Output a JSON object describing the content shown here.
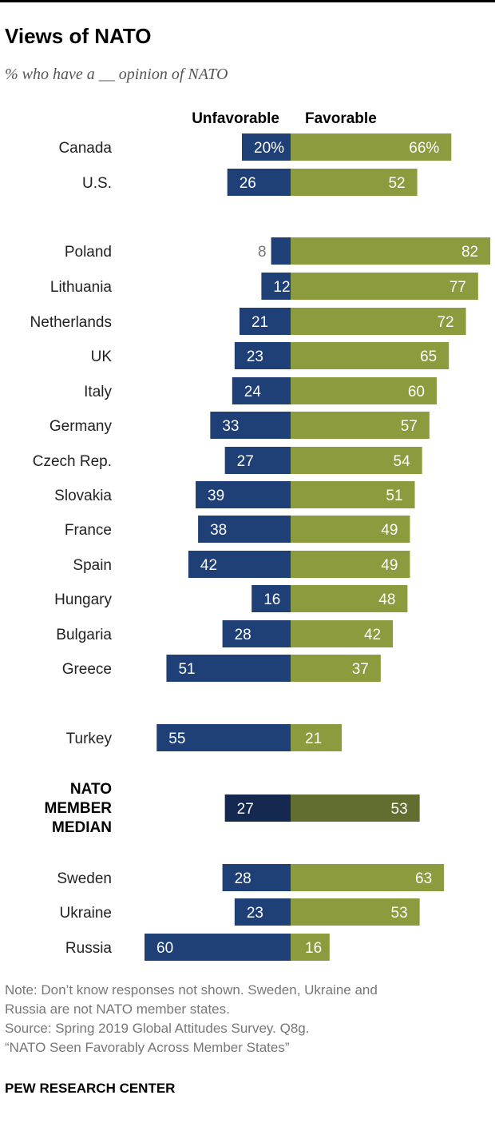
{
  "title": "Views of NATO",
  "subtitle": "% who have a __ opinion of NATO",
  "chart_data": {
    "type": "bar",
    "orientation": "horizontal-diverging",
    "legend": [
      "Unfavorable",
      "Favorable"
    ],
    "colors": {
      "unfavorable": "#1f3f77",
      "favorable": "#8c9b3e",
      "unfavorable_median": "#15284f",
      "favorable_median": "#626e30",
      "outside_label": "#777777"
    },
    "rows": [
      {
        "label": "Canada",
        "unfavorable": 20,
        "favorable": 66,
        "unfavorable_label": "20%",
        "favorable_label": "66%"
      },
      {
        "label": "U.S.",
        "unfavorable": 26,
        "favorable": 52,
        "unfavorable_label": "26",
        "favorable_label": "52"
      },
      {
        "label": "Poland",
        "unfavorable": 8,
        "favorable": 82,
        "unfavorable_label": "8",
        "favorable_label": "82"
      },
      {
        "label": "Lithuania",
        "unfavorable": 12,
        "favorable": 77,
        "unfavorable_label": "12",
        "favorable_label": "77"
      },
      {
        "label": "Netherlands",
        "unfavorable": 21,
        "favorable": 72,
        "unfavorable_label": "21",
        "favorable_label": "72"
      },
      {
        "label": "UK",
        "unfavorable": 23,
        "favorable": 65,
        "unfavorable_label": "23",
        "favorable_label": "65"
      },
      {
        "label": "Italy",
        "unfavorable": 24,
        "favorable": 60,
        "unfavorable_label": "24",
        "favorable_label": "60"
      },
      {
        "label": "Germany",
        "unfavorable": 33,
        "favorable": 57,
        "unfavorable_label": "33",
        "favorable_label": "57"
      },
      {
        "label": "Czech Rep.",
        "unfavorable": 27,
        "favorable": 54,
        "unfavorable_label": "27",
        "favorable_label": "54"
      },
      {
        "label": "Slovakia",
        "unfavorable": 39,
        "favorable": 51,
        "unfavorable_label": "39",
        "favorable_label": "51"
      },
      {
        "label": "France",
        "unfavorable": 38,
        "favorable": 49,
        "unfavorable_label": "38",
        "favorable_label": "49"
      },
      {
        "label": "Spain",
        "unfavorable": 42,
        "favorable": 49,
        "unfavorable_label": "42",
        "favorable_label": "49"
      },
      {
        "label": "Hungary",
        "unfavorable": 16,
        "favorable": 48,
        "unfavorable_label": "16",
        "favorable_label": "48"
      },
      {
        "label": "Bulgaria",
        "unfavorable": 28,
        "favorable": 42,
        "unfavorable_label": "28",
        "favorable_label": "42"
      },
      {
        "label": "Greece",
        "unfavorable": 51,
        "favorable": 37,
        "unfavorable_label": "51",
        "favorable_label": "37"
      },
      {
        "label": "Turkey",
        "unfavorable": 55,
        "favorable": 21,
        "unfavorable_label": "55",
        "favorable_label": "21"
      },
      {
        "label": "NATO MEMBER MEDIAN",
        "label_lines": [
          "NATO",
          "MEMBER",
          "MEDIAN"
        ],
        "unfavorable": 27,
        "favorable": 53,
        "unfavorable_label": "27",
        "favorable_label": "53",
        "median": true
      },
      {
        "label": "Sweden",
        "unfavorable": 28,
        "favorable": 63,
        "unfavorable_label": "28",
        "favorable_label": "63"
      },
      {
        "label": "Ukraine",
        "unfavorable": 23,
        "favorable": 53,
        "unfavorable_label": "23",
        "favorable_label": "53"
      },
      {
        "label": "Russia",
        "unfavorable": 60,
        "favorable": 16,
        "unfavorable_label": "60",
        "favorable_label": "16"
      }
    ]
  },
  "note_lines": [
    "Note: Don’t know responses not shown. Sweden, Ukraine and",
    "Russia are not NATO member states.",
    "Source: Spring 2019 Global Attitudes Survey. Q8g.",
    "“NATO Seen Favorably Across Member States”"
  ],
  "brand": "PEW RESEARCH CENTER"
}
